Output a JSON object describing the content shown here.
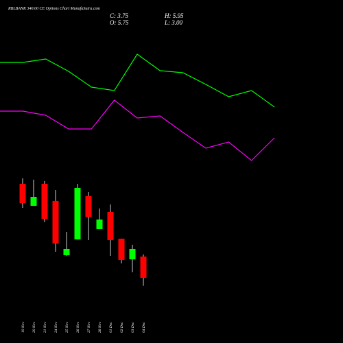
{
  "header": {
    "title": "RBLBANK 340.00 CE Options  Chart MunafaSutra.com",
    "close": "C: 3.75",
    "high": "H: 5.95",
    "open": "O: 5.75",
    "low": "L: 3.00"
  },
  "chart_data": [
    {
      "type": "line",
      "ylim": [
        0,
        190
      ],
      "series": [
        {
          "color": "#00ff00",
          "values": [
            159,
            159,
            164,
            146,
            123,
            118,
            171,
            147,
            144,
            127,
            109,
            118,
            94
          ]
        },
        {
          "color": "#ff00ff",
          "values": [
            88,
            88,
            82,
            62,
            62,
            104,
            78,
            81,
            57,
            34,
            43,
            16,
            49
          ]
        }
      ]
    },
    {
      "type": "candlestick",
      "ylim": [
        1,
        14
      ],
      "up_color": "#00ff00",
      "down_color": "#ff0000",
      "categories": [
        "19 Nov",
        "20 Nov",
        "21 Nov",
        "24 Nov",
        "25 Nov",
        "26 Nov",
        "27 Nov",
        "28 Nov",
        "01 Dec",
        "02 Dec",
        "03 Dec",
        "04 Dec"
      ],
      "open": [
        12.59,
        10.52,
        12.59,
        10.98,
        5.88,
        7.36,
        11.43,
        8.33,
        9.94,
        7.43,
        5.49,
        5.75
      ],
      "high": [
        13.1,
        12.98,
        12.85,
        12.01,
        8.07,
        12.59,
        11.81,
        10.27,
        10.65,
        7.43,
        6.85,
        5.95
      ],
      "low": [
        10.33,
        10.52,
        8.98,
        6.2,
        5.81,
        7.36,
        7.3,
        8.33,
        5.81,
        5.1,
        4.27,
        3.0
      ],
      "close": [
        10.78,
        11.36,
        9.3,
        6.98,
        6.46,
        12.2,
        9.49,
        9.23,
        7.3,
        5.43,
        6.46,
        3.75
      ]
    }
  ]
}
